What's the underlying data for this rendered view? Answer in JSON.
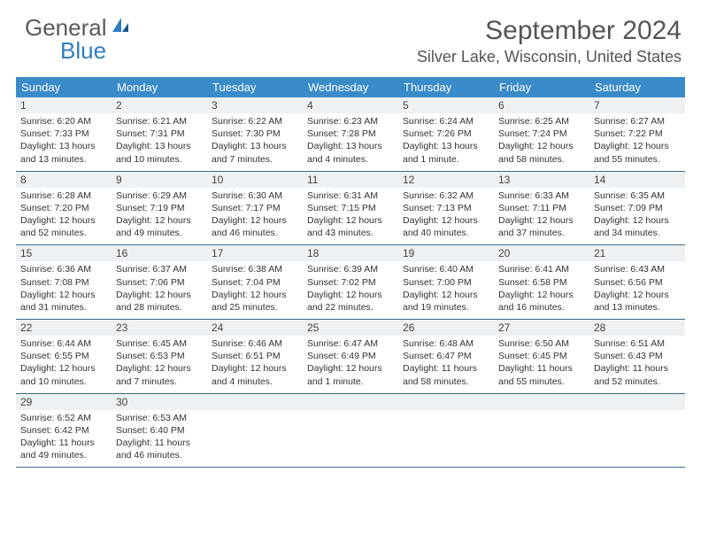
{
  "logo": {
    "text1": "General",
    "text2": "Blue"
  },
  "title": "September 2024",
  "location": "Silver Lake, Wisconsin, United States",
  "colors": {
    "header_bg": "#3a8bc9",
    "header_text": "#ffffff",
    "daynum_bg": "#eef1f3",
    "border": "#3a6a8a",
    "logo_gray": "#5a5a5a",
    "logo_blue": "#2f7fbf",
    "body_text": "#333333"
  },
  "day_headers": [
    "Sunday",
    "Monday",
    "Tuesday",
    "Wednesday",
    "Thursday",
    "Friday",
    "Saturday"
  ],
  "weeks": [
    [
      {
        "n": "1",
        "sr": "Sunrise: 6:20 AM",
        "ss": "Sunset: 7:33 PM",
        "d1": "Daylight: 13 hours",
        "d2": "and 13 minutes."
      },
      {
        "n": "2",
        "sr": "Sunrise: 6:21 AM",
        "ss": "Sunset: 7:31 PM",
        "d1": "Daylight: 13 hours",
        "d2": "and 10 minutes."
      },
      {
        "n": "3",
        "sr": "Sunrise: 6:22 AM",
        "ss": "Sunset: 7:30 PM",
        "d1": "Daylight: 13 hours",
        "d2": "and 7 minutes."
      },
      {
        "n": "4",
        "sr": "Sunrise: 6:23 AM",
        "ss": "Sunset: 7:28 PM",
        "d1": "Daylight: 13 hours",
        "d2": "and 4 minutes."
      },
      {
        "n": "5",
        "sr": "Sunrise: 6:24 AM",
        "ss": "Sunset: 7:26 PM",
        "d1": "Daylight: 13 hours",
        "d2": "and 1 minute."
      },
      {
        "n": "6",
        "sr": "Sunrise: 6:25 AM",
        "ss": "Sunset: 7:24 PM",
        "d1": "Daylight: 12 hours",
        "d2": "and 58 minutes."
      },
      {
        "n": "7",
        "sr": "Sunrise: 6:27 AM",
        "ss": "Sunset: 7:22 PM",
        "d1": "Daylight: 12 hours",
        "d2": "and 55 minutes."
      }
    ],
    [
      {
        "n": "8",
        "sr": "Sunrise: 6:28 AM",
        "ss": "Sunset: 7:20 PM",
        "d1": "Daylight: 12 hours",
        "d2": "and 52 minutes."
      },
      {
        "n": "9",
        "sr": "Sunrise: 6:29 AM",
        "ss": "Sunset: 7:19 PM",
        "d1": "Daylight: 12 hours",
        "d2": "and 49 minutes."
      },
      {
        "n": "10",
        "sr": "Sunrise: 6:30 AM",
        "ss": "Sunset: 7:17 PM",
        "d1": "Daylight: 12 hours",
        "d2": "and 46 minutes."
      },
      {
        "n": "11",
        "sr": "Sunrise: 6:31 AM",
        "ss": "Sunset: 7:15 PM",
        "d1": "Daylight: 12 hours",
        "d2": "and 43 minutes."
      },
      {
        "n": "12",
        "sr": "Sunrise: 6:32 AM",
        "ss": "Sunset: 7:13 PM",
        "d1": "Daylight: 12 hours",
        "d2": "and 40 minutes."
      },
      {
        "n": "13",
        "sr": "Sunrise: 6:33 AM",
        "ss": "Sunset: 7:11 PM",
        "d1": "Daylight: 12 hours",
        "d2": "and 37 minutes."
      },
      {
        "n": "14",
        "sr": "Sunrise: 6:35 AM",
        "ss": "Sunset: 7:09 PM",
        "d1": "Daylight: 12 hours",
        "d2": "and 34 minutes."
      }
    ],
    [
      {
        "n": "15",
        "sr": "Sunrise: 6:36 AM",
        "ss": "Sunset: 7:08 PM",
        "d1": "Daylight: 12 hours",
        "d2": "and 31 minutes."
      },
      {
        "n": "16",
        "sr": "Sunrise: 6:37 AM",
        "ss": "Sunset: 7:06 PM",
        "d1": "Daylight: 12 hours",
        "d2": "and 28 minutes."
      },
      {
        "n": "17",
        "sr": "Sunrise: 6:38 AM",
        "ss": "Sunset: 7:04 PM",
        "d1": "Daylight: 12 hours",
        "d2": "and 25 minutes."
      },
      {
        "n": "18",
        "sr": "Sunrise: 6:39 AM",
        "ss": "Sunset: 7:02 PM",
        "d1": "Daylight: 12 hours",
        "d2": "and 22 minutes."
      },
      {
        "n": "19",
        "sr": "Sunrise: 6:40 AM",
        "ss": "Sunset: 7:00 PM",
        "d1": "Daylight: 12 hours",
        "d2": "and 19 minutes."
      },
      {
        "n": "20",
        "sr": "Sunrise: 6:41 AM",
        "ss": "Sunset: 6:58 PM",
        "d1": "Daylight: 12 hours",
        "d2": "and 16 minutes."
      },
      {
        "n": "21",
        "sr": "Sunrise: 6:43 AM",
        "ss": "Sunset: 6:56 PM",
        "d1": "Daylight: 12 hours",
        "d2": "and 13 minutes."
      }
    ],
    [
      {
        "n": "22",
        "sr": "Sunrise: 6:44 AM",
        "ss": "Sunset: 6:55 PM",
        "d1": "Daylight: 12 hours",
        "d2": "and 10 minutes."
      },
      {
        "n": "23",
        "sr": "Sunrise: 6:45 AM",
        "ss": "Sunset: 6:53 PM",
        "d1": "Daylight: 12 hours",
        "d2": "and 7 minutes."
      },
      {
        "n": "24",
        "sr": "Sunrise: 6:46 AM",
        "ss": "Sunset: 6:51 PM",
        "d1": "Daylight: 12 hours",
        "d2": "and 4 minutes."
      },
      {
        "n": "25",
        "sr": "Sunrise: 6:47 AM",
        "ss": "Sunset: 6:49 PM",
        "d1": "Daylight: 12 hours",
        "d2": "and 1 minute."
      },
      {
        "n": "26",
        "sr": "Sunrise: 6:48 AM",
        "ss": "Sunset: 6:47 PM",
        "d1": "Daylight: 11 hours",
        "d2": "and 58 minutes."
      },
      {
        "n": "27",
        "sr": "Sunrise: 6:50 AM",
        "ss": "Sunset: 6:45 PM",
        "d1": "Daylight: 11 hours",
        "d2": "and 55 minutes."
      },
      {
        "n": "28",
        "sr": "Sunrise: 6:51 AM",
        "ss": "Sunset: 6:43 PM",
        "d1": "Daylight: 11 hours",
        "d2": "and 52 minutes."
      }
    ],
    [
      {
        "n": "29",
        "sr": "Sunrise: 6:52 AM",
        "ss": "Sunset: 6:42 PM",
        "d1": "Daylight: 11 hours",
        "d2": "and 49 minutes."
      },
      {
        "n": "30",
        "sr": "Sunrise: 6:53 AM",
        "ss": "Sunset: 6:40 PM",
        "d1": "Daylight: 11 hours",
        "d2": "and 46 minutes."
      },
      null,
      null,
      null,
      null,
      null
    ]
  ]
}
